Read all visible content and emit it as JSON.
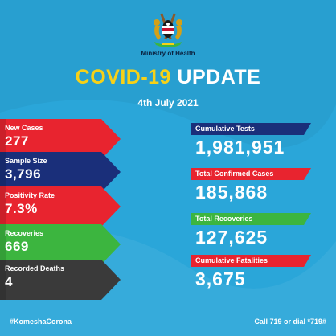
{
  "header": {
    "emblem": "kenya-coat-of-arms-icon",
    "ministry": "Ministry of Health",
    "title_part1": "COVID-19",
    "title_part2": "UPDATE",
    "date": "4th July 2021"
  },
  "stats": {
    "new_cases": {
      "label": "New Cases",
      "value": "277"
    },
    "sample_size": {
      "label": "Sample Size",
      "value": "3,796"
    },
    "positivity_rate": {
      "label": "Positivity Rate",
      "value": "7.3%"
    },
    "recoveries": {
      "label": "Recoveries",
      "value": "669"
    },
    "recorded_deaths": {
      "label": "Recorded Deaths",
      "value": "4"
    }
  },
  "cumulative": {
    "tests": {
      "label": "Cumulative Tests",
      "value": "1,981,951"
    },
    "confirmed": {
      "label": "Total Confirmed Cases",
      "value": "185,868"
    },
    "recoveries": {
      "label": "Total Recoveries",
      "value": "127,625"
    },
    "fatalities": {
      "label": "Cumulative Fatalities",
      "value": "3,675"
    }
  },
  "footer": {
    "hashtag": "#KomeshaCorona",
    "call": "Call 719 or dial *719#"
  },
  "colors": {
    "background": "#2aa6d9",
    "red": "#e8242f",
    "navy": "#1a2f7a",
    "green": "#3cb53f",
    "dark": "#3a3a3a",
    "yellow": "#f7d117"
  }
}
